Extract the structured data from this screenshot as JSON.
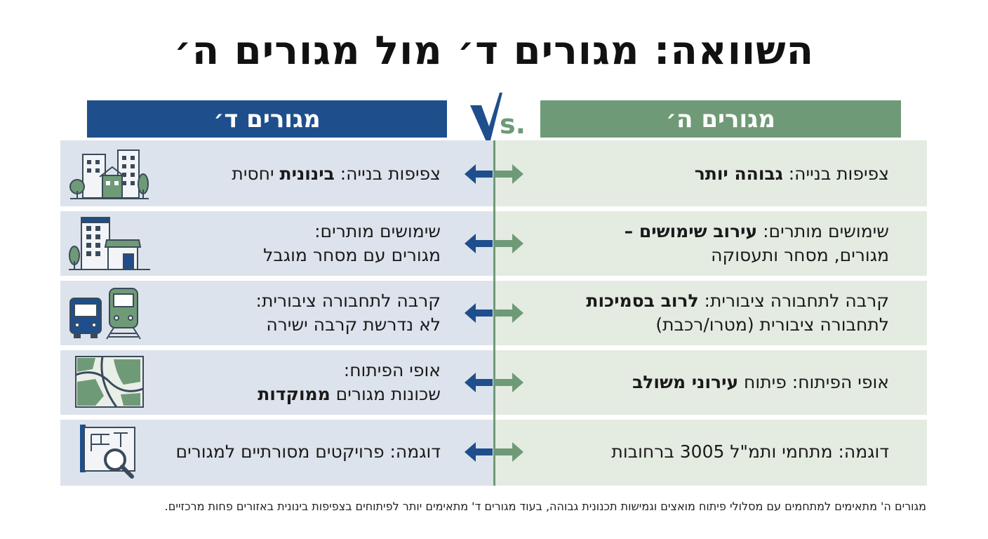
{
  "title": "השוואה: מגורים ד׳ מול מגורים ה׳",
  "header_left": "מגורים ד׳",
  "header_right": "מגורים ה׳",
  "rows": [
    {
      "left": {
        "label": "צפיפות בנייה: ",
        "bold": "בינונית",
        "rest": " יחסית"
      },
      "right": {
        "label": "צפיפות בנייה: ",
        "bold": "גבוהה יותר"
      },
      "icon": "city-buildings-icon"
    },
    {
      "left": {
        "line1": "שימושים מותרים:",
        "line2": "מגורים עם מסחר מוגבל"
      },
      "right": {
        "label": "שימושים מותרים: ",
        "bold": "עירוב שימושים",
        "rest": " –",
        "line2": "מגורים, מסחר ותעסוקה"
      },
      "icon": "building-storefront-icon"
    },
    {
      "left": {
        "line1": "קרבה לתחבורה ציבורית:",
        "line2": "לא נדרשת קרבה ישירה"
      },
      "right": {
        "label": "קרבה לתחבורה ציבורית: ",
        "bold": "לרוב בסמיכות",
        "line2": "לתחבורה ציבורית (מטרו/רכבת)"
      },
      "icon": "bus-train-icon"
    },
    {
      "left": {
        "line1": "אופי הפיתוח:",
        "line2_plain": "שכונות מגורים ",
        "line2_bold": "ממוקדות"
      },
      "right": {
        "label": "אופי הפיתוח: פיתוח ",
        "bold": "עירוני משולב"
      },
      "icon": "map-icon"
    },
    {
      "left": {
        "text": "דוגמה: פרויקטים מסורתיים למגורים"
      },
      "right": {
        "text": "דוגמה: מתחמי ותמ\"ל 3005 ברחובות"
      },
      "icon": "blueprint-magnifier-icon"
    }
  ],
  "footnote": "מגורים ה' מתאימים למתחמים עם מסלולי פיתוח מואצים וגמישות תכנונית גבוהה, בעוד מגורים ד' מתאימים יותר לפיתוחים בצפיפות בינונית באזורים פחות מרכזיים.",
  "colors": {
    "blue": "#1e4f8c",
    "green": "#6f9a77",
    "left_bg": "#dde3ec",
    "right_bg": "#e4ebe1"
  }
}
